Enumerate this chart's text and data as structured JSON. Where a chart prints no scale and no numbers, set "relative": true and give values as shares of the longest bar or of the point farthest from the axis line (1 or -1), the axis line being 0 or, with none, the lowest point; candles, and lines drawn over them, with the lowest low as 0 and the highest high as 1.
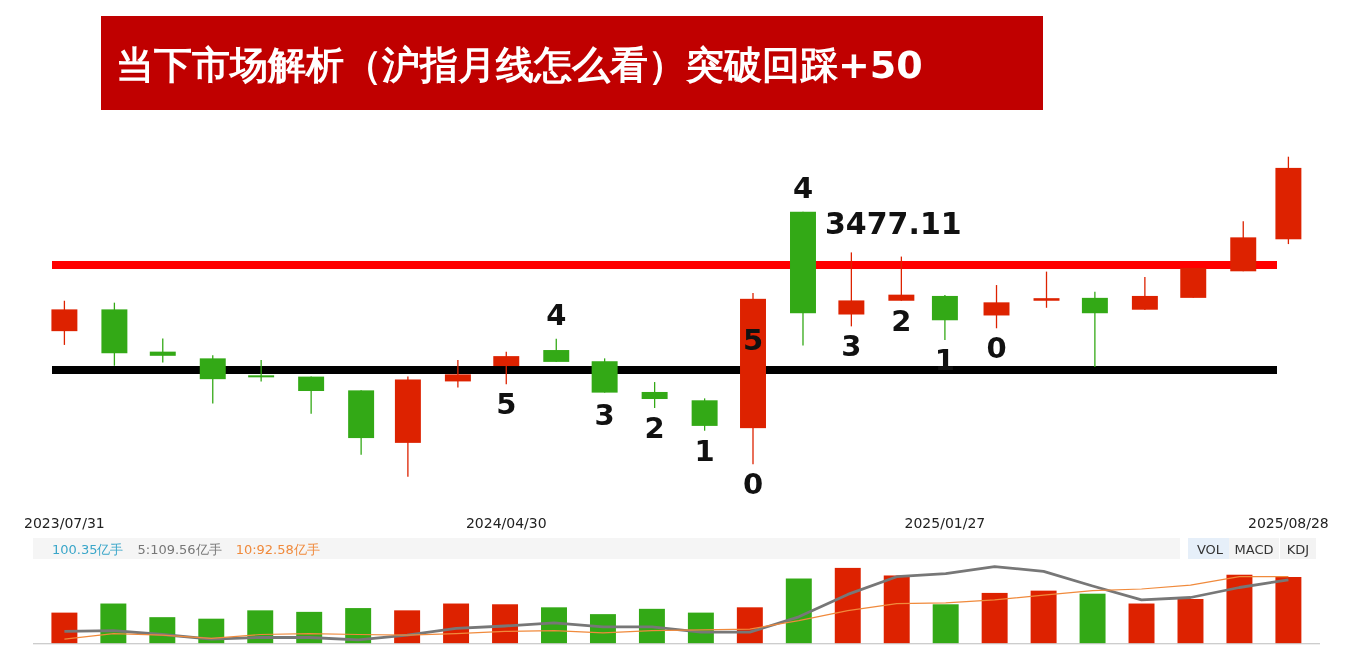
{
  "chart_data": [
    {
      "type": "candlestick",
      "title": "当下市场解析（沪指月线怎么看）突破回踩+50",
      "relative": true,
      "x": [
        "2023-07-31",
        "2023-08-31",
        "2023-09-30",
        "2023-10-31",
        "2023-11-30",
        "2023-12-31",
        "2024-01-31",
        "2024-02-29",
        "2024-03-31",
        "2024-04-30",
        "2024-05-31",
        "2024-06-30",
        "2024-07-31",
        "2024-08-31",
        "2024-09-30",
        "2024-10-31",
        "2024-11-30",
        "2024-12-31",
        "2025-01-27",
        "2025-02-28",
        "2025-03-31",
        "2025-04-30",
        "2025-05-31",
        "2025-06-30",
        "2025-07-31",
        "2025-08-28"
      ],
      "xlim": [
        "2023-07-31",
        "2025-08-28"
      ],
      "xticks": [
        {
          "value": "2023-07-31",
          "label": "2023/07/31"
        },
        {
          "value": "2024-04-30",
          "label": "2024/04/30"
        },
        {
          "value": "2025-01-27",
          "label": "2025/01/27"
        },
        {
          "value": "2025-08-28",
          "label": "2025/08/28"
        }
      ],
      "tick_labels": "x",
      "ohlc": [
        [
          0.455,
          0.55,
          0.412,
          0.523
        ],
        [
          0.523,
          0.544,
          0.347,
          0.386
        ],
        [
          0.391,
          0.432,
          0.357,
          0.378
        ],
        [
          0.37,
          0.38,
          0.229,
          0.305
        ],
        [
          0.317,
          0.365,
          0.298,
          0.312
        ],
        [
          0.313,
          0.313,
          0.197,
          0.268
        ],
        [
          0.27,
          0.27,
          0.069,
          0.121
        ],
        [
          0.106,
          0.313,
          0.0,
          0.304
        ],
        [
          0.298,
          0.365,
          0.279,
          0.32
        ],
        [
          0.346,
          0.391,
          0.289,
          0.377
        ],
        [
          0.396,
          0.431,
          0.359,
          0.359
        ],
        [
          0.361,
          0.37,
          0.263,
          0.263
        ],
        [
          0.265,
          0.296,
          0.215,
          0.243
        ],
        [
          0.239,
          0.245,
          0.144,
          0.159
        ],
        [
          0.152,
          0.574,
          0.039,
          0.556
        ],
        [
          0.828,
          0.828,
          0.41,
          0.511
        ],
        [
          0.507,
          0.701,
          0.47,
          0.551
        ],
        [
          0.55,
          0.688,
          0.55,
          0.569
        ],
        [
          0.565,
          0.568,
          0.427,
          0.489
        ],
        [
          0.504,
          0.599,
          0.464,
          0.545
        ],
        [
          0.55,
          0.641,
          0.528,
          0.558
        ],
        [
          0.559,
          0.578,
          0.343,
          0.511
        ],
        [
          0.522,
          0.624,
          0.521,
          0.565
        ],
        [
          0.559,
          0.652,
          0.559,
          0.652
        ],
        [
          0.642,
          0.798,
          0.642,
          0.748
        ],
        [
          0.742,
          1.0,
          0.727,
          0.965
        ]
      ],
      "colors": [
        "#dd2200",
        "#33a916",
        "#33a916",
        "#33a916",
        "#33a916",
        "#33a916",
        "#33a916",
        "#dd2200",
        "#dd2200",
        "#dd2200",
        "#33a916",
        "#33a916",
        "#33a916",
        "#33a916",
        "#dd2200",
        "#33a916",
        "#dd2200",
        "#dd2200",
        "#33a916",
        "#dd2200",
        "#dd2200",
        "#33a916",
        "#dd2200",
        "#dd2200",
        "#dd2200",
        "#dd2200"
      ],
      "ref_lines": [
        {
          "axis": "y",
          "value": 0.662,
          "color": "#ff0000"
        },
        {
          "axis": "y",
          "value": 0.334,
          "color": "#000000"
        }
      ],
      "annotations": [
        {
          "text": "5",
          "x": "2024-04-30",
          "y": 0.289
        },
        {
          "text": "4",
          "x": "2024-05-31",
          "y": 0.431
        },
        {
          "text": "3",
          "x": "2024-06-30",
          "y": 0.256
        },
        {
          "text": "2",
          "x": "2024-07-31",
          "y": 0.215
        },
        {
          "text": "1",
          "x": "2024-08-31",
          "y": 0.144
        },
        {
          "text": "0",
          "x": "2024-09-30",
          "y": 0.039
        },
        {
          "text": "5",
          "x": "2024-09-30",
          "y": 0.427
        },
        {
          "text": "4",
          "x": "2024-10-31",
          "y": 0.828
        },
        {
          "text": "3477.11",
          "x": "2024-10-31",
          "y": 0.828
        },
        {
          "text": "3",
          "x": "2024-11-30",
          "y": 0.47
        },
        {
          "text": "2",
          "x": "2024-12-31",
          "y": 0.55
        },
        {
          "text": "1",
          "x": "2025-01-27",
          "y": 0.427
        },
        {
          "text": "0",
          "x": "2025-02-28",
          "y": 0.464
        }
      ]
    },
    {
      "type": "bar",
      "relative": true,
      "tick_labels": false,
      "categories": [
        null,
        null,
        null,
        null,
        null,
        null,
        null,
        null,
        null,
        null,
        null,
        null,
        null,
        null,
        null,
        null,
        null,
        null,
        null,
        null,
        null,
        null,
        null,
        null,
        null,
        null
      ],
      "colors": [
        "#dd2200",
        "#33a916",
        "#33a916",
        "#33a916",
        "#33a916",
        "#33a916",
        "#33a916",
        "#dd2200",
        "#dd2200",
        "#dd2200",
        "#33a916",
        "#33a916",
        "#33a916",
        "#33a916",
        "#dd2200",
        "#33a916",
        "#dd2200",
        "#dd2200",
        "#33a916",
        "#dd2200",
        "#dd2200",
        "#33a916",
        "#dd2200",
        "#dd2200",
        "#dd2200",
        "#dd2200"
      ],
      "values": [
        0.41,
        0.53,
        0.35,
        0.33,
        0.44,
        0.42,
        0.47,
        0.44,
        0.53,
        0.52,
        0.48,
        0.39,
        0.46,
        0.41,
        0.48,
        0.86,
        1.0,
        0.9,
        0.52,
        0.67,
        0.7,
        0.66,
        0.53,
        0.59,
        0.91,
        0.88
      ],
      "annotations": [
        "100.35亿手",
        "VOL",
        "MACD",
        "KDJ"
      ]
    },
    {
      "type": "line",
      "relative": true,
      "tick_labels": false,
      "categories": [
        null,
        null,
        null,
        null,
        null,
        null,
        null,
        null,
        null,
        null,
        null,
        null,
        null,
        null,
        null,
        null,
        null,
        null,
        null,
        null,
        null,
        null,
        null,
        null,
        null,
        null
      ],
      "series": [
        {
          "name": "5:109.56亿手",
          "color": "#777777",
          "values": [
            0.16,
            0.17,
            0.12,
            0.06,
            0.08,
            0.08,
            0.05,
            0.11,
            0.2,
            0.23,
            0.27,
            0.22,
            0.22,
            0.15,
            0.15,
            0.35,
            0.64,
            0.87,
            0.91,
            1.0,
            0.94,
            0.75,
            0.57,
            0.6,
            0.73,
            0.83
          ]
        },
        {
          "name": "10:92.58亿手",
          "color": "#f08a3c",
          "values": [
            0.06,
            0.13,
            0.11,
            0.07,
            0.12,
            0.13,
            0.12,
            0.11,
            0.13,
            0.16,
            0.17,
            0.14,
            0.17,
            0.18,
            0.19,
            0.3,
            0.43,
            0.52,
            0.53,
            0.57,
            0.63,
            0.69,
            0.71,
            0.76,
            0.87,
            0.87
          ]
        }
      ]
    }
  ]
}
